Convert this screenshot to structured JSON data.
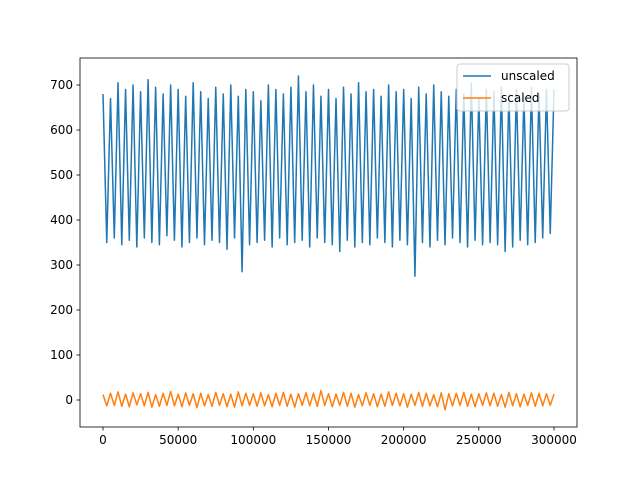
{
  "chart_data": {
    "type": "line",
    "x": [
      0,
      2500,
      5000,
      7500,
      10000,
      12500,
      15000,
      17500,
      20000,
      22500,
      25000,
      27500,
      30000,
      32500,
      35000,
      37500,
      40000,
      42500,
      45000,
      47500,
      50000,
      52500,
      55000,
      57500,
      60000,
      62500,
      65000,
      67500,
      70000,
      72500,
      75000,
      77500,
      80000,
      82500,
      85000,
      87500,
      90000,
      92500,
      95000,
      97500,
      100000,
      102500,
      105000,
      107500,
      110000,
      112500,
      115000,
      117500,
      120000,
      122500,
      125000,
      127500,
      130000,
      132500,
      135000,
      137500,
      140000,
      142500,
      145000,
      147500,
      150000,
      152500,
      155000,
      157500,
      160000,
      162500,
      165000,
      167500,
      170000,
      172500,
      175000,
      177500,
      180000,
      182500,
      185000,
      187500,
      190000,
      192500,
      195000,
      197500,
      200000,
      202500,
      205000,
      207500,
      210000,
      212500,
      215000,
      217500,
      220000,
      222500,
      225000,
      227500,
      230000,
      232500,
      235000,
      237500,
      240000,
      242500,
      245000,
      247500,
      250000,
      252500,
      255000,
      257500,
      260000,
      262500,
      265000,
      267500,
      270000,
      272500,
      275000,
      277500,
      280000,
      282500,
      285000,
      287500,
      290000,
      292500,
      295000,
      297500,
      300000
    ],
    "series": [
      {
        "name": "unscaled",
        "color": "#1f77b4",
        "values": [
          680,
          350,
          670,
          360,
          705,
          345,
          690,
          355,
          700,
          340,
          685,
          360,
          712,
          350,
          695,
          345,
          680,
          365,
          700,
          355,
          690,
          340,
          675,
          350,
          705,
          360,
          685,
          345,
          670,
          355,
          695,
          350,
          680,
          335,
          700,
          360,
          675,
          285,
          690,
          345,
          685,
          350,
          665,
          355,
          700,
          340,
          690,
          360,
          680,
          345,
          695,
          350,
          720,
          355,
          685,
          340,
          700,
          360,
          675,
          350,
          690,
          345,
          670,
          330,
          695,
          355,
          680,
          340,
          705,
          350,
          685,
          345,
          690,
          360,
          675,
          350,
          700,
          340,
          685,
          355,
          690,
          345,
          670,
          275,
          695,
          350,
          680,
          340,
          700,
          355,
          685,
          345,
          675,
          360,
          690,
          350,
          680,
          340,
          705,
          355,
          670,
          345,
          690,
          350,
          685,
          345,
          695,
          330,
          680,
          340,
          690,
          355,
          675,
          345,
          695,
          350,
          680,
          360,
          690,
          370,
          690
        ]
      },
      {
        "name": "scaled",
        "color": "#ff7f0e",
        "values": [
          12,
          -13,
          15,
          -12,
          18,
          -14,
          13,
          -15,
          16,
          -11,
          14,
          -13,
          17,
          -16,
          12,
          -14,
          15,
          -12,
          19,
          -13,
          13,
          -15,
          16,
          -12,
          14,
          -17,
          15,
          -13,
          12,
          -14,
          17,
          -12,
          14,
          -15,
          13,
          -16,
          18,
          -13,
          15,
          -12,
          14,
          -14,
          16,
          -13,
          12,
          -15,
          15,
          -12,
          17,
          -14,
          13,
          -16,
          14,
          -12,
          16,
          -13,
          15,
          -14,
          21,
          -12,
          14,
          -15,
          13,
          -12,
          17,
          -14,
          15,
          -16,
          12,
          -13,
          16,
          -12,
          14,
          -15,
          13,
          -14,
          18,
          -12,
          15,
          -13,
          14,
          -16,
          13,
          -12,
          17,
          -14,
          15,
          -13,
          12,
          -15,
          16,
          -22,
          14,
          -13,
          15,
          -12,
          17,
          -14,
          13,
          -15,
          14,
          -12,
          16,
          -13,
          15,
          -14,
          12,
          -16,
          17,
          -13,
          14,
          -15,
          13,
          -12,
          16,
          -14,
          15,
          -13,
          14,
          -12,
          13
        ]
      }
    ],
    "xlim": [
      -15300,
      315300
    ],
    "xticks": [
      0,
      50000,
      100000,
      150000,
      200000,
      250000,
      300000
    ],
    "ylim": [
      -60,
      760
    ],
    "yticks": [
      0,
      100,
      200,
      300,
      400,
      500,
      600,
      700
    ],
    "legend": "upper right"
  }
}
